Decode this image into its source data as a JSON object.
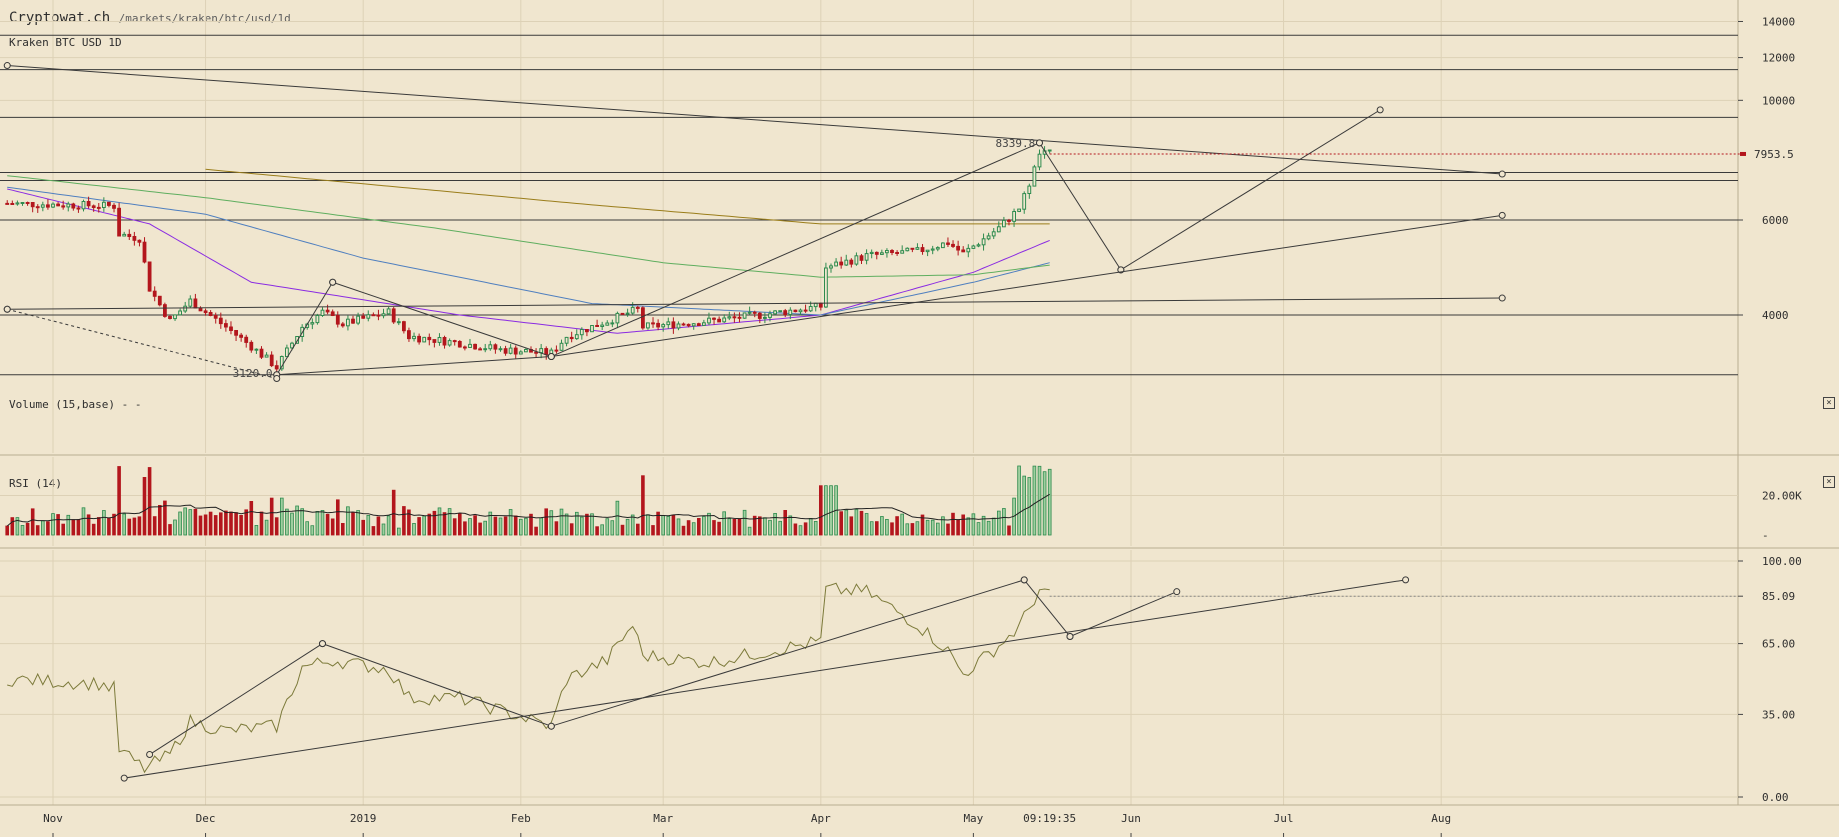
{
  "header": {
    "site": "Cryptowat.ch",
    "path": "/markets/kraken/btc/usd/1d",
    "market": "Kraken BTC USD 1D"
  },
  "panels": {
    "volume_label": "Volume (15,base) - -",
    "rsi_label": "RSI (14)",
    "close_icon": "close-x-icon"
  },
  "time_axis": {
    "labels": [
      "Nov",
      "Dec",
      "2019",
      "Feb",
      "Mar",
      "Apr",
      "May",
      "Jun",
      "Jul",
      "Aug"
    ],
    "cursor_time": "09:19:35"
  },
  "colors": {
    "background": "#f0e6cf",
    "grid": "#ddd1b6",
    "up": "#2e8b4e",
    "down": "#b3161d",
    "ma1": "#8a2be2",
    "ma2": "#4f7fbf",
    "ma3": "#5fae5f",
    "ma4": "#9a7d1a",
    "rsi": "#7c7a3a"
  },
  "chart_data": [
    {
      "type": "candlestick",
      "title": "Kraken BTC USD 1D",
      "y_scale": "log",
      "ylim": [
        2500,
        15500
      ],
      "xlim": [
        "2018-10-23",
        "2019-08-13"
      ],
      "y_ticks": [
        4000,
        6000,
        10000,
        12000,
        14000
      ],
      "last_price": "7953.5",
      "annotations": [
        {
          "text": "8339.8",
          "x": "2019-05-14",
          "y": 8339.8
        },
        {
          "text": "3120.0",
          "x": "2018-12-15",
          "y": 3120.0
        }
      ],
      "close_anchors": [
        [
          "2018-10-23",
          6440
        ],
        [
          "2018-11-13",
          6370
        ],
        [
          "2018-11-14",
          5650
        ],
        [
          "2018-11-18",
          5550
        ],
        [
          "2018-11-20",
          4480
        ],
        [
          "2018-11-24",
          3900
        ],
        [
          "2018-11-28",
          4250
        ],
        [
          "2018-12-05",
          3800
        ],
        [
          "2018-12-10",
          3500
        ],
        [
          "2018-12-15",
          3200
        ],
        [
          "2018-12-20",
          3800
        ],
        [
          "2018-12-24",
          4050
        ],
        [
          "2018-12-28",
          3850
        ],
        [
          "2019-01-06",
          4050
        ],
        [
          "2019-01-10",
          3650
        ],
        [
          "2019-01-20",
          3550
        ],
        [
          "2019-01-28",
          3450
        ],
        [
          "2019-02-07",
          3400
        ],
        [
          "2019-02-10",
          3650
        ],
        [
          "2019-02-18",
          3900
        ],
        [
          "2019-02-24",
          4100
        ],
        [
          "2019-02-25",
          3800
        ],
        [
          "2019-03-10",
          3900
        ],
        [
          "2019-03-20",
          4000
        ],
        [
          "2019-04-01",
          4150
        ],
        [
          "2019-04-02",
          4900
        ],
        [
          "2019-04-10",
          5150
        ],
        [
          "2019-04-20",
          5250
        ],
        [
          "2019-04-26",
          5450
        ],
        [
          "2019-04-29",
          5200
        ],
        [
          "2019-05-06",
          5800
        ],
        [
          "2019-05-10",
          6300
        ],
        [
          "2019-05-12",
          7000
        ],
        [
          "2019-05-14",
          7950
        ],
        [
          "2019-05-16",
          7953.5
        ]
      ],
      "moving_averages": [
        {
          "color": "ma1",
          "points": [
            [
              "2018-10-23",
              6850
            ],
            [
              "2018-11-20",
              5900
            ],
            [
              "2018-12-10",
              4600
            ],
            [
              "2019-01-20",
              4000
            ],
            [
              "2019-02-20",
              3700
            ],
            [
              "2019-04-01",
              4000
            ],
            [
              "2019-05-01",
              4800
            ],
            [
              "2019-05-16",
              5500
            ]
          ]
        },
        {
          "color": "ma2",
          "points": [
            [
              "2018-10-23",
              6900
            ],
            [
              "2018-12-01",
              6150
            ],
            [
              "2019-01-01",
              5100
            ],
            [
              "2019-02-15",
              4200
            ],
            [
              "2019-04-01",
              4000
            ],
            [
              "2019-05-01",
              4600
            ],
            [
              "2019-05-16",
              5000
            ]
          ]
        },
        {
          "color": "ma3",
          "points": [
            [
              "2018-10-23",
              7250
            ],
            [
              "2018-12-01",
              6600
            ],
            [
              "2019-01-15",
              5800
            ],
            [
              "2019-03-01",
              5000
            ],
            [
              "2019-04-01",
              4700
            ],
            [
              "2019-05-01",
              4750
            ],
            [
              "2019-05-16",
              4950
            ]
          ]
        },
        {
          "color": "ma4",
          "points": [
            [
              "2018-12-01",
              7450
            ],
            [
              "2019-02-15",
              6400
            ],
            [
              "2019-04-01",
              5900
            ],
            [
              "2019-05-16",
              5900
            ]
          ]
        }
      ],
      "horizontal_lines": [
        13200,
        11400,
        9300,
        7350,
        7100,
        6000,
        4000,
        3100
      ],
      "trendlines": [
        [
          [
            "2018-10-23",
            11600
          ],
          [
            "2019-08-13",
            7300
          ]
        ],
        [
          [
            "2018-12-15",
            3100
          ],
          [
            "2019-02-07",
            3350
          ]
        ],
        [
          [
            "2018-12-15",
            3100
          ],
          [
            "2018-12-26",
            4600
          ]
        ],
        [
          [
            "2018-12-26",
            4600
          ],
          [
            "2019-02-07",
            3350
          ]
        ],
        [
          [
            "2019-02-07",
            3350
          ],
          [
            "2019-05-14",
            8340
          ]
        ],
        [
          [
            "2019-05-14",
            8340
          ],
          [
            "2019-05-30",
            4850
          ]
        ],
        [
          [
            "2019-05-30",
            4850
          ],
          [
            "2019-07-20",
            9600
          ]
        ],
        [
          [
            "2019-02-07",
            3350
          ],
          [
            "2019-08-13",
            6120
          ]
        ],
        [
          [
            "2018-10-23",
            4100
          ],
          [
            "2019-08-13",
            4300
          ]
        ],
        [
          [
            "2018-10-23",
            4100
          ],
          [
            "2018-12-15",
            3050
          ]
        ]
      ]
    },
    {
      "type": "bar",
      "title": "Volume (15,base) - -",
      "y_ticks": [
        20000
      ],
      "tick_labels": [
        "20.00K"
      ],
      "ylim": [
        0,
        38000
      ]
    },
    {
      "type": "line",
      "title": "RSI (14)",
      "ylim": [
        0,
        100
      ],
      "y_ticks": [
        0,
        35,
        65,
        85.09,
        100
      ],
      "tick_labels": [
        "0.00",
        "35.00",
        "65.00",
        "85.09",
        "100.00"
      ],
      "anchors": [
        [
          "2018-10-23",
          50
        ],
        [
          "2018-11-10",
          48
        ],
        [
          "2018-11-13",
          46
        ],
        [
          "2018-11-14",
          20
        ],
        [
          "2018-11-19",
          12
        ],
        [
          "2018-11-24",
          18
        ],
        [
          "2018-11-28",
          32
        ],
        [
          "2018-12-05",
          28
        ],
        [
          "2018-12-15",
          30
        ],
        [
          "2018-12-20",
          55
        ],
        [
          "2018-12-26",
          58
        ],
        [
          "2019-01-06",
          54
        ],
        [
          "2019-01-10",
          42
        ],
        [
          "2019-01-20",
          42
        ],
        [
          "2019-02-07",
          30
        ],
        [
          "2019-02-10",
          50
        ],
        [
          "2019-02-18",
          58
        ],
        [
          "2019-02-23",
          73
        ],
        [
          "2019-02-25",
          60
        ],
        [
          "2019-03-10",
          57
        ],
        [
          "2019-04-01",
          66
        ],
        [
          "2019-04-02",
          88
        ],
        [
          "2019-04-10",
          87
        ],
        [
          "2019-04-20",
          73
        ],
        [
          "2019-04-26",
          62
        ],
        [
          "2019-04-29",
          52
        ],
        [
          "2019-05-06",
          64
        ],
        [
          "2019-05-10",
          72
        ],
        [
          "2019-05-14",
          88
        ],
        [
          "2019-05-16",
          85
        ]
      ],
      "trendlines": [
        [
          [
            "2018-11-15",
            8
          ],
          [
            "2019-07-25",
            92
          ]
        ],
        [
          [
            "2018-11-20",
            18
          ],
          [
            "2018-12-24",
            65
          ]
        ],
        [
          [
            "2018-12-24",
            65
          ],
          [
            "2019-02-07",
            30
          ]
        ],
        [
          [
            "2019-02-07",
            30
          ],
          [
            "2019-05-11",
            92
          ]
        ],
        [
          [
            "2019-05-11",
            92
          ],
          [
            "2019-05-20",
            68
          ]
        ],
        [
          [
            "2019-05-20",
            68
          ],
          [
            "2019-06-10",
            87
          ]
        ]
      ]
    }
  ]
}
